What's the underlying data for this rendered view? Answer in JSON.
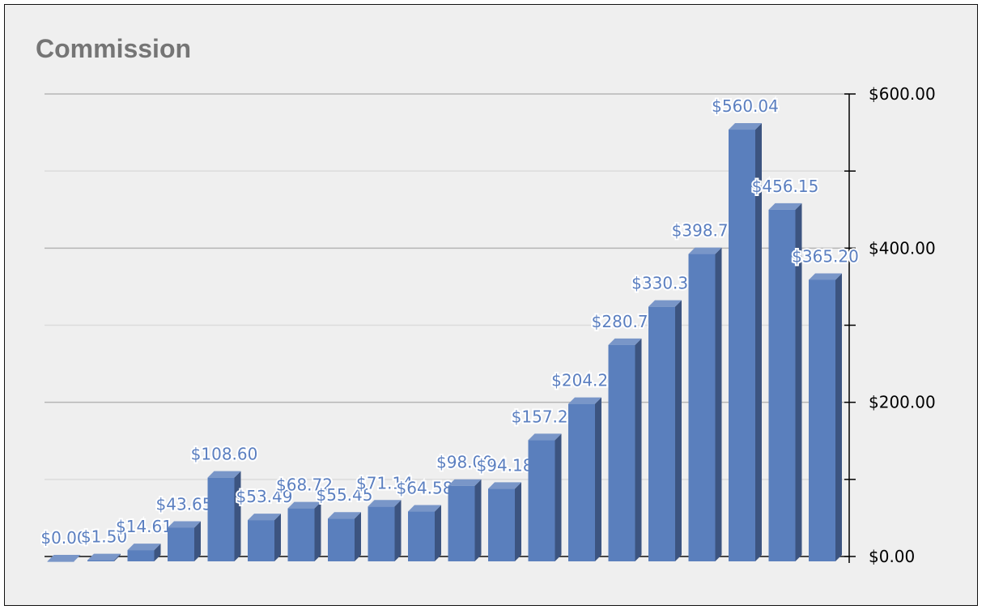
{
  "chart_data": {
    "type": "bar",
    "title": "Commission",
    "xlabel": "",
    "ylabel": "",
    "ylim": [
      0,
      600
    ],
    "y_ticks": [
      "$0.00",
      "$200.00",
      "$400.00",
      "$600.00"
    ],
    "y_tick_values": [
      0,
      200,
      400,
      600
    ],
    "axis_position": "right",
    "grid": true,
    "values": [
      0.0,
      1.5,
      14.61,
      43.65,
      108.6,
      53.49,
      68.72,
      55.45,
      71.14,
      64.58,
      98.0,
      94.18,
      157.25,
      204.25,
      280.75,
      330.3,
      398.7,
      560.04,
      456.15,
      365.2
    ],
    "labels": [
      "$0.00",
      "$1.50",
      "$14.61",
      "$43.65",
      "$108.60",
      "$53.49",
      "$68.72",
      "$55.45",
      "$71.14",
      "$64.58",
      "$98.00",
      "$94.18",
      "$157.25",
      "$204.25",
      "$280.75",
      "$330.30",
      "$398.70",
      "$560.04",
      "$456.15",
      "$365.20"
    ],
    "color": "#5a7fbd"
  }
}
